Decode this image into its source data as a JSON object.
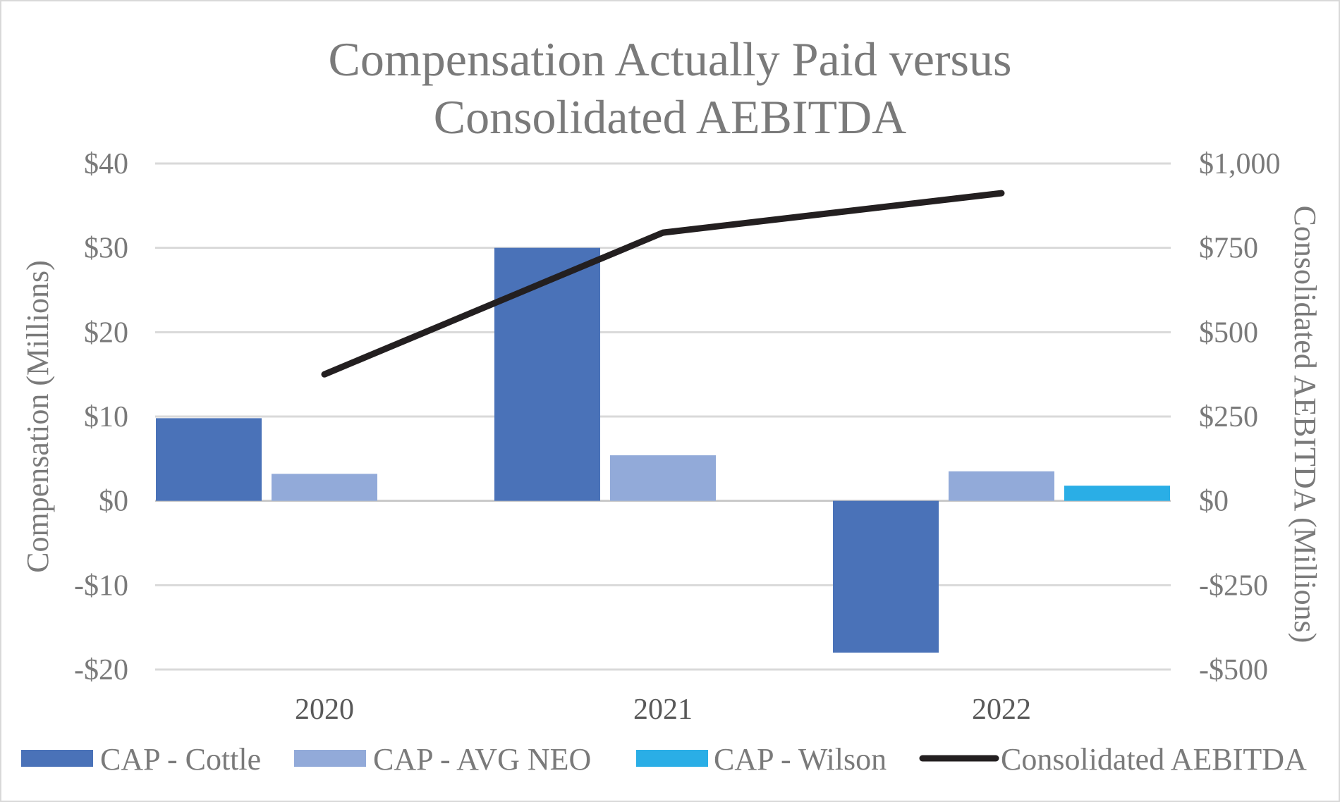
{
  "chart_data": {
    "type": "bar",
    "title": "Compensation Actually  Paid versus Consolidated AEBITDA",
    "title_lines": [
      "Compensation Actually  Paid versus",
      "Consolidated AEBITDA"
    ],
    "categories": [
      "2020",
      "2021",
      "2022"
    ],
    "ylabel_left": "Compensation (Millions)",
    "ylabel_right": "Consolidated AEBITDA  (Millions)",
    "left_axis": {
      "min": -20,
      "max": 40,
      "ticks": [
        -20,
        -10,
        0,
        10,
        20,
        30,
        40
      ],
      "tick_labels": [
        "-$20",
        "-$10",
        "$0",
        "$10",
        "$20",
        "$30",
        "$40"
      ]
    },
    "right_axis": {
      "min": -500,
      "max": 1000,
      "ticks": [
        -500,
        -250,
        0,
        250,
        500,
        750,
        1000
      ],
      "tick_labels": [
        "-$500",
        "-$250",
        "$0",
        "$250",
        "$500",
        "$750",
        "$1,000"
      ]
    },
    "series": [
      {
        "name": "CAP - Cottle",
        "kind": "bar",
        "axis": "left",
        "color": "#4a72b8",
        "values": [
          9.8,
          30,
          -18
        ]
      },
      {
        "name": "CAP - AVG NEO",
        "kind": "bar",
        "axis": "left",
        "color": "#92aad9",
        "values": [
          3.2,
          5.4,
          3.5
        ]
      },
      {
        "name": "CAP - Wilson",
        "kind": "bar",
        "axis": "left",
        "color": "#2aaee6",
        "values": [
          null,
          null,
          1.8
        ]
      },
      {
        "name": "Consolidated AEBITDA",
        "kind": "line",
        "axis": "right",
        "color": "#231f20",
        "values": [
          375,
          795,
          912
        ]
      }
    ],
    "grid": true,
    "legend_position": "bottom"
  }
}
